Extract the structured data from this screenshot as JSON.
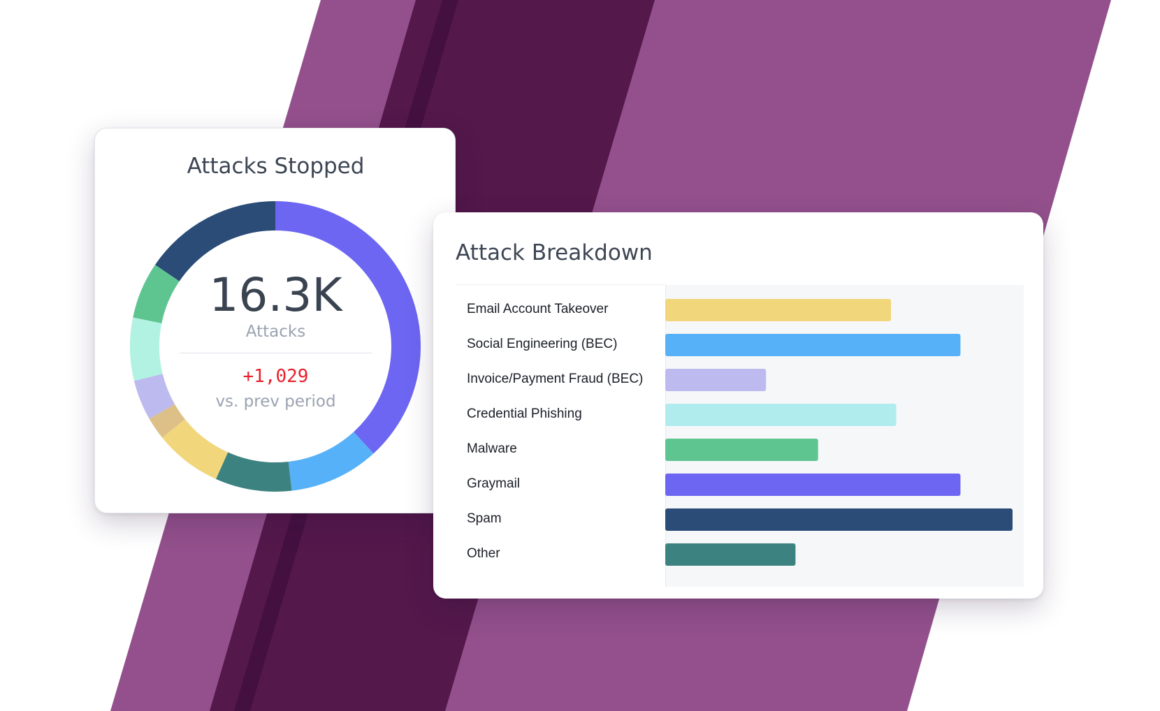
{
  "colors": {
    "background_light": "#93508c",
    "background_dark": "#54184b",
    "background_stripe": "#441040"
  },
  "donut": {
    "title": "Attacks Stopped",
    "total": "16.3K",
    "total_label": "Attacks",
    "change": "+1,029",
    "change_label": "vs. prev period",
    "change_color": "#e8212b"
  },
  "breakdown": {
    "title": "Attack Breakdown"
  },
  "chart_data": [
    {
      "type": "pie",
      "title": "Attacks Stopped",
      "slices": [
        {
          "value": 38.2,
          "color": "#6c66f2"
        },
        {
          "value": 10.0,
          "color": "#56b1f8"
        },
        {
          "value": 8.5,
          "color": "#3c8280"
        },
        {
          "value": 7.5,
          "color": "#f1d67c"
        },
        {
          "value": 2.5,
          "color": "#dcc088"
        },
        {
          "value": 4.5,
          "color": "#bcbaef"
        },
        {
          "value": 7.0,
          "color": "#b1f2e2"
        },
        {
          "value": 6.3,
          "color": "#5ec591"
        },
        {
          "value": 15.5,
          "color": "#2a4c77"
        }
      ]
    },
    {
      "type": "bar",
      "orientation": "horizontal",
      "title": "Attack Breakdown",
      "categories": [
        "Email Account Takeover",
        "Social Engineering (BEC)",
        "Invoice/Payment Fraud (BEC)",
        "Credential Phishing",
        "Malware",
        "Graymail",
        "Spam",
        "Other"
      ],
      "values": [
        65,
        85,
        29,
        66.5,
        44,
        85,
        100,
        37.5
      ],
      "colors": [
        "#f1d67c",
        "#56b1f8",
        "#bcbaef",
        "#b0ecee",
        "#5ec591",
        "#6c66f2",
        "#2a4c77",
        "#3c8280"
      ],
      "xlim": [
        0,
        100
      ]
    }
  ]
}
